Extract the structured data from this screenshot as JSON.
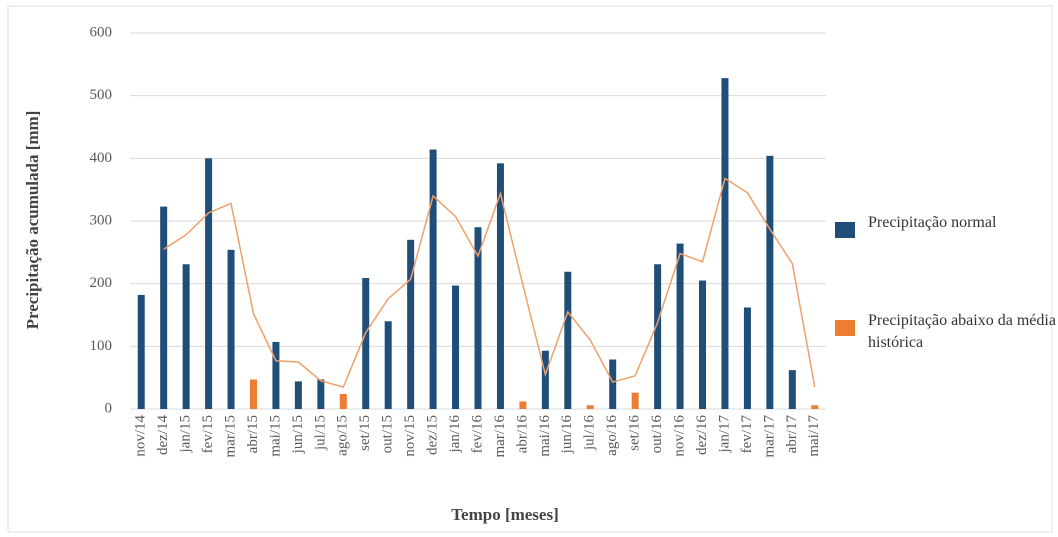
{
  "chart_data": {
    "type": "bar",
    "x_label": "Tempo [meses]",
    "y_label": "Precipitação acumulada [mm]",
    "categories": [
      "nov/14",
      "dez/14",
      "jan/15",
      "fev/15",
      "mar/15",
      "abr/15",
      "mai/15",
      "jun/15",
      "jul/15",
      "ago/15",
      "set/15",
      "out/15",
      "nov/15",
      "dez/15",
      "jan/16",
      "fev/16",
      "mar/16",
      "abr/16",
      "mai/16",
      "jun/16",
      "jul/16",
      "ago/16",
      "set/16",
      "out/16",
      "nov/16",
      "dez/16",
      "jan/17",
      "fev/17",
      "mar/17",
      "abr/17",
      "mai/17"
    ],
    "series": [
      {
        "name": "Precipitação normal",
        "color": "#1f4e79",
        "type": "bar",
        "values": [
          182,
          323,
          231,
          400,
          254,
          null,
          107,
          44,
          47,
          null,
          209,
          140,
          270,
          414,
          197,
          290,
          392,
          null,
          93,
          219,
          null,
          79,
          null,
          231,
          264,
          205,
          528,
          162,
          404,
          62,
          null
        ]
      },
      {
        "name": "Precipitação abaixo da média histórica",
        "color": "#ed7d31",
        "type": "bar",
        "values": [
          null,
          null,
          null,
          null,
          null,
          47,
          null,
          null,
          null,
          24,
          null,
          null,
          null,
          null,
          null,
          null,
          null,
          12,
          null,
          null,
          6,
          null,
          26,
          null,
          null,
          null,
          null,
          null,
          null,
          null,
          6
        ]
      },
      {
        "color": "#f0a06a",
        "type": "line",
        "values": [
          null,
          255,
          278,
          313,
          328,
          152,
          77,
          75,
          45,
          35,
          122,
          176,
          207,
          340,
          307,
          244,
          344,
          198,
          55,
          155,
          110,
          43,
          53,
          138,
          248,
          235,
          368,
          345,
          287,
          232,
          35
        ]
      }
    ],
    "ylim": [
      0,
      600
    ],
    "yticks": [
      0,
      100,
      200,
      300,
      400,
      500,
      600
    ],
    "grid": true,
    "legend": "right"
  }
}
